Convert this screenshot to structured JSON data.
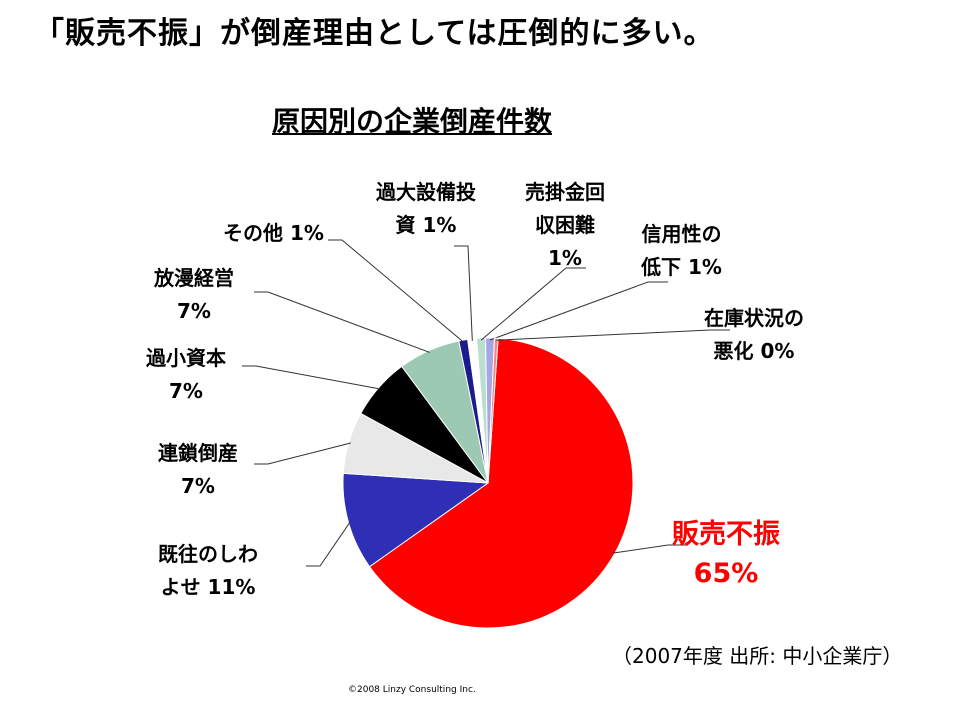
{
  "headline": "「販売不振」が倒産理由としては圧倒的に多い。",
  "source": "（2007年度 出所: 中小企業庁）",
  "copyright": "©2008 Linzy Consulting Inc.",
  "chart_data": {
    "type": "pie",
    "title": "原因別の企業倒産件数",
    "slices": [
      {
        "name": "販売不振",
        "value": 65,
        "label_name": "販売不振",
        "label_value": "65%",
        "color": "#ff0000"
      },
      {
        "name": "既往のしわよせ",
        "value": 11,
        "label_name": "既往のしわ",
        "label_value": "よせ 11%",
        "color": "#2f2fb5"
      },
      {
        "name": "連鎖倒産",
        "value": 7,
        "label_name": "連鎖倒産",
        "label_value": "7%",
        "color": "#e8e8e8"
      },
      {
        "name": "過小資本",
        "value": 7,
        "label_name": "過小資本",
        "label_value": "7%",
        "color": "#000000"
      },
      {
        "name": "放漫経営",
        "value": 7,
        "label_name": "放漫経営",
        "label_value": "7%",
        "color": "#9cc9b3"
      },
      {
        "name": "その他",
        "value": 1,
        "label_name": "その他 1%",
        "label_value": "",
        "color": "#1c1c8e"
      },
      {
        "name": "過大設備投資",
        "value": 1,
        "label_name": "過大設備投",
        "label_value": "資 1%",
        "color": "#ffffff"
      },
      {
        "name": "売掛金回収困難",
        "value": 1,
        "label_name": "売掛金回",
        "label_value": "収困難",
        "label_value2": "1%",
        "color": "#b8dfd0"
      },
      {
        "name": "信用性の低下",
        "value": 1,
        "label_name": "信用性の",
        "label_value": "低下 1%",
        "color": "#a6a6e6"
      },
      {
        "name": "在庫状況の悪化",
        "value": 0,
        "label_name": "在庫状況の",
        "label_value": "悪化 0%",
        "color": "#ff8080"
      }
    ],
    "legend": "none"
  }
}
